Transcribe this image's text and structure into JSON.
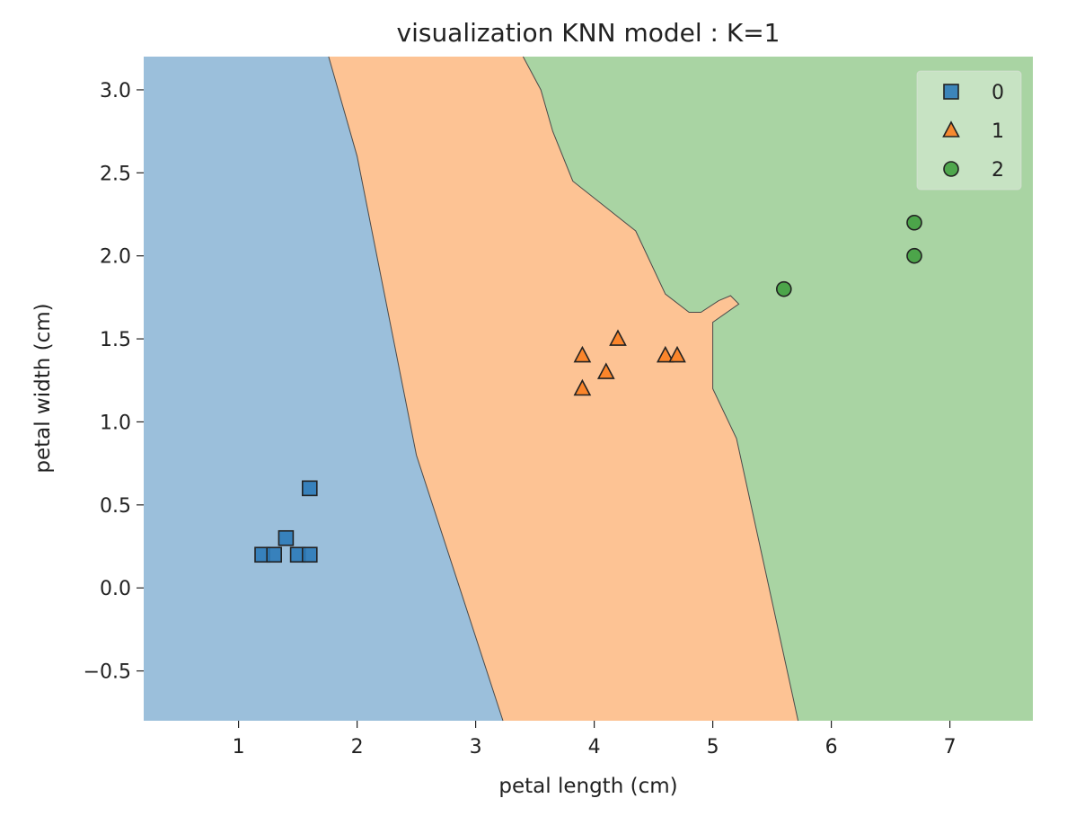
{
  "chart_data": {
    "type": "scatter",
    "title": "visualization KNN model : K=1",
    "xlabel": "petal length (cm)",
    "ylabel": "petal width (cm)",
    "xlim": [
      0.2,
      7.7
    ],
    "ylim": [
      -0.8,
      3.2
    ],
    "xticks": [
      1,
      2,
      3,
      4,
      5,
      6,
      7
    ],
    "xtick_labels": [
      "1",
      "2",
      "3",
      "4",
      "5",
      "6",
      "7"
    ],
    "yticks": [
      -0.5,
      0.0,
      0.5,
      1.0,
      1.5,
      2.0,
      2.5,
      3.0
    ],
    "ytick_labels": [
      "−0.5",
      "0.0",
      "0.5",
      "1.0",
      "1.5",
      "2.0",
      "2.5",
      "3.0"
    ],
    "grid": false,
    "legend_position": "top-right",
    "regions": [
      {
        "class": "0",
        "color": "#9bbfdb",
        "boundary": [
          [
            0.2,
            3.2
          ],
          [
            0.2,
            -0.8
          ],
          [
            3.23,
            -0.8
          ],
          [
            2.5,
            0.8
          ],
          [
            2.0,
            2.6
          ],
          [
            1.76,
            3.2
          ]
        ]
      },
      {
        "class": "1",
        "color": "#fdc394",
        "boundary": [
          [
            1.76,
            3.2
          ],
          [
            2.0,
            2.6
          ],
          [
            2.5,
            0.8
          ],
          [
            3.23,
            -0.8
          ],
          [
            5.72,
            -0.8
          ],
          [
            5.2,
            0.9
          ],
          [
            5.0,
            1.2
          ],
          [
            5.0,
            1.6
          ],
          [
            5.22,
            1.71
          ],
          [
            5.15,
            1.76
          ],
          [
            5.05,
            1.73
          ],
          [
            4.9,
            1.66
          ],
          [
            4.8,
            1.66
          ],
          [
            4.6,
            1.77
          ],
          [
            4.35,
            2.15
          ],
          [
            4.05,
            2.32
          ],
          [
            3.82,
            2.45
          ],
          [
            3.65,
            2.75
          ],
          [
            3.55,
            3.0
          ],
          [
            3.4,
            3.2
          ]
        ]
      },
      {
        "class": "2",
        "color": "#a9d4a3",
        "boundary": [
          [
            3.4,
            3.2
          ],
          [
            3.55,
            3.0
          ],
          [
            3.65,
            2.75
          ],
          [
            3.82,
            2.45
          ],
          [
            4.05,
            2.32
          ],
          [
            4.35,
            2.15
          ],
          [
            4.6,
            1.77
          ],
          [
            4.8,
            1.66
          ],
          [
            4.9,
            1.66
          ],
          [
            5.05,
            1.73
          ],
          [
            5.15,
            1.76
          ],
          [
            5.22,
            1.71
          ],
          [
            5.0,
            1.6
          ],
          [
            5.0,
            1.2
          ],
          [
            5.2,
            0.9
          ],
          [
            5.72,
            -0.8
          ],
          [
            7.7,
            -0.8
          ],
          [
            7.7,
            3.2
          ]
        ]
      }
    ],
    "series": [
      {
        "name": "0",
        "marker": "square",
        "color": "#2c7ab8",
        "points": [
          [
            1.2,
            0.2
          ],
          [
            1.3,
            0.2
          ],
          [
            1.4,
            0.3
          ],
          [
            1.5,
            0.2
          ],
          [
            1.6,
            0.2
          ],
          [
            1.6,
            0.6
          ]
        ]
      },
      {
        "name": "1",
        "marker": "triangle",
        "color": "#fb7e1f",
        "points": [
          [
            3.9,
            1.4
          ],
          [
            3.9,
            1.2
          ],
          [
            4.1,
            1.3
          ],
          [
            4.2,
            1.5
          ],
          [
            4.6,
            1.4
          ],
          [
            4.7,
            1.4
          ]
        ]
      },
      {
        "name": "2",
        "marker": "circle",
        "color": "#41a040",
        "points": [
          [
            5.6,
            1.8
          ],
          [
            6.7,
            2.0
          ],
          [
            6.7,
            2.2
          ]
        ]
      }
    ]
  }
}
